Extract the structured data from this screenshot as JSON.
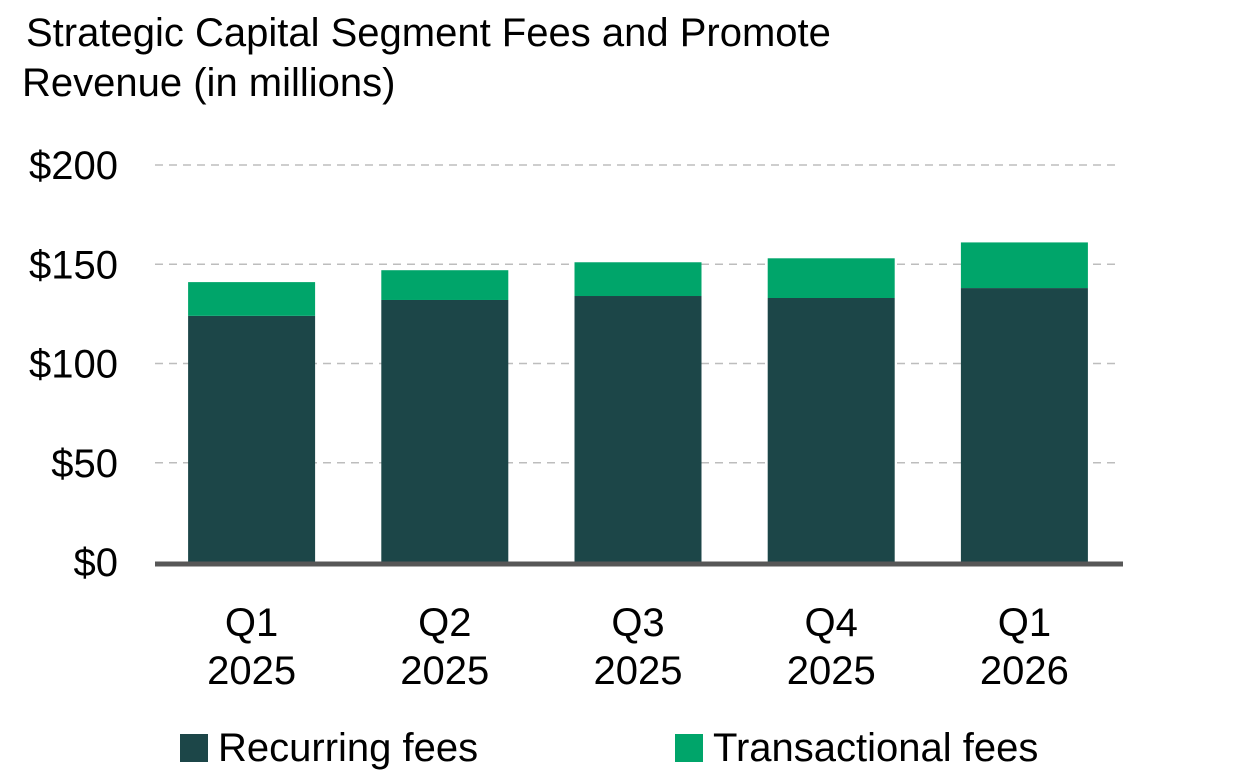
{
  "chart_data": {
    "type": "bar",
    "stacked": true,
    "title": "Strategic Capital Segment Fees and Promote Revenue (in millions)",
    "title_lines": [
      "Strategic Capital Segment Fees and Promote",
      "Revenue (in millions)"
    ],
    "categories": [
      [
        "Q1",
        "2025"
      ],
      [
        "Q2",
        "2025"
      ],
      [
        "Q3",
        "2025"
      ],
      [
        "Q4",
        "2025"
      ],
      [
        "Q1",
        "2026"
      ]
    ],
    "series": [
      {
        "name": "Recurring fees",
        "color": "#1c4648",
        "values": [
          124,
          132,
          134,
          133,
          138
        ]
      },
      {
        "name": "Transactional fees",
        "color": "#00a56a",
        "values": [
          17,
          15,
          17,
          20,
          23
        ]
      }
    ],
    "ylim": [
      0,
      200
    ],
    "yticks": [
      0,
      50,
      100,
      150,
      200
    ],
    "ytick_labels": [
      "$0",
      "$50",
      "$100",
      "$150",
      "$200"
    ],
    "grid": true,
    "grid_style": "dashed",
    "legend_position": "bottom",
    "xlabel": "",
    "ylabel": ""
  }
}
